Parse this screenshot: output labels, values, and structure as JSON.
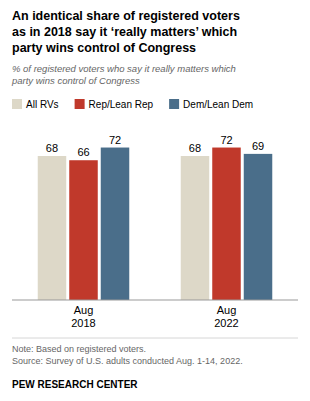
{
  "chart_data": {
    "type": "bar",
    "title": "An identical share of registered voters\nas in 2018 say it ‘really matters’ which\nparty wins control of Congress",
    "subtitle": "% of registered voters who say it really matters which\nparty wins control of Congress",
    "categories": [
      "Aug\n2018",
      "Aug\n2022"
    ],
    "series": [
      {
        "name": "All RVs",
        "color": "#ddd8c8",
        "values": [
          68,
          68
        ]
      },
      {
        "name": "Rep/Lean Rep",
        "color": "#c0392b",
        "values": [
          66,
          72
        ]
      },
      {
        "name": "Dem/Lean Dem",
        "color": "#4a6e8a",
        "values": [
          72,
          69
        ]
      }
    ],
    "ylim": [
      0,
      85
    ],
    "data_labels": true,
    "tick_labels": "x",
    "grid": false,
    "legend": "top",
    "annotations": [
      "Note: Based on registered voters.\nSource: Survey of U.S. adults conducted Aug. 1-14, 2022.",
      "PEW RESEARCH CENTER"
    ]
  }
}
